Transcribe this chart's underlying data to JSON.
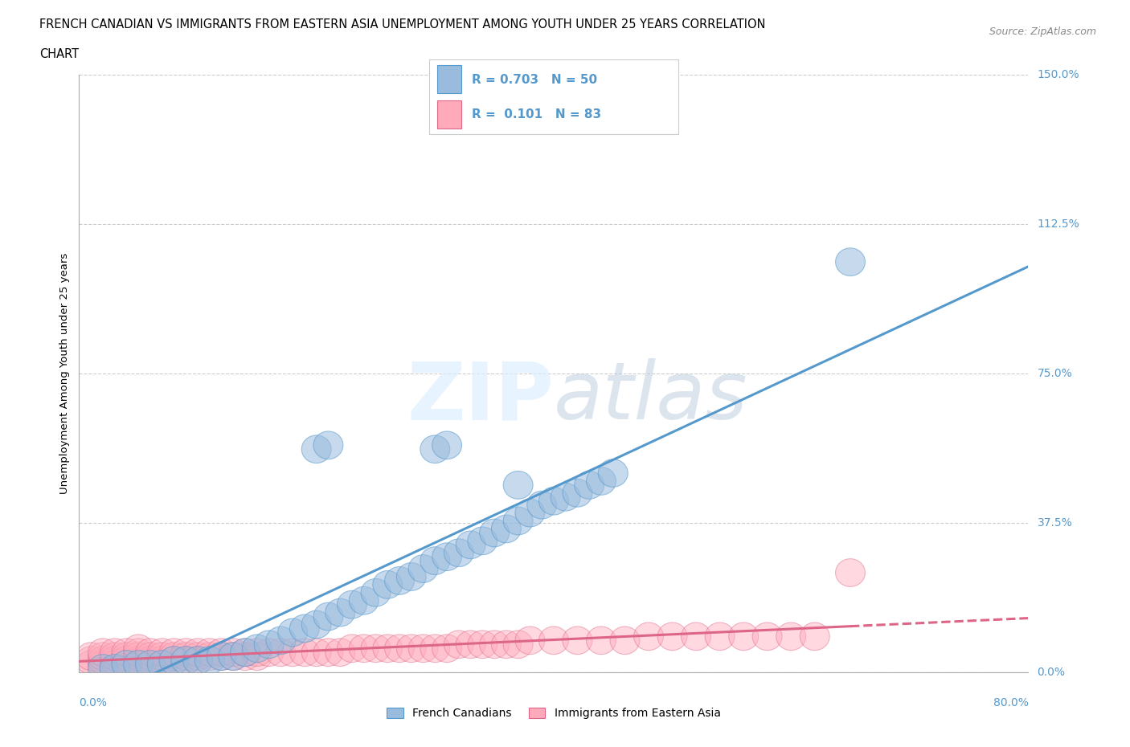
{
  "title_line1": "FRENCH CANADIAN VS IMMIGRANTS FROM EASTERN ASIA UNEMPLOYMENT AMONG YOUTH UNDER 25 YEARS CORRELATION",
  "title_line2": "CHART",
  "source_text": "Source: ZipAtlas.com",
  "xlabel_bottom_left": "0.0%",
  "xlabel_bottom_right": "80.0%",
  "ylabel": "Unemployment Among Youth under 25 years",
  "xlim": [
    0.0,
    80.0
  ],
  "ylim": [
    0.0,
    150.0
  ],
  "yticks": [
    0.0,
    37.5,
    75.0,
    112.5,
    150.0
  ],
  "ytick_labels": [
    "0.0%",
    "37.5%",
    "75.0%",
    "112.5%",
    "150.0%"
  ],
  "grid_color": "#cccccc",
  "background_color": "#ffffff",
  "blue_color": "#5599cc",
  "blue_fill": "#99bbdd",
  "pink_color": "#dd6688",
  "pink_fill": "#ffaabb",
  "blue_R": 0.703,
  "blue_N": 50,
  "pink_R": 0.101,
  "pink_N": 83,
  "legend_label_blue": "French Canadians",
  "legend_label_pink": "Immigrants from Eastern Asia",
  "blue_scatter_x": [
    2,
    3,
    4,
    5,
    6,
    7,
    8,
    9,
    10,
    11,
    12,
    13,
    14,
    15,
    16,
    17,
    18,
    19,
    20,
    21,
    22,
    23,
    24,
    25,
    26,
    27,
    28,
    29,
    30,
    31,
    32,
    33,
    34,
    35,
    36,
    37,
    38,
    39,
    40,
    41,
    42,
    43,
    44,
    45,
    65,
    20,
    21,
    30,
    31,
    37
  ],
  "blue_scatter_y": [
    1,
    1,
    2,
    2,
    2,
    2,
    3,
    3,
    3,
    3,
    4,
    4,
    5,
    6,
    7,
    8,
    10,
    11,
    12,
    14,
    15,
    17,
    18,
    20,
    22,
    23,
    24,
    26,
    28,
    29,
    30,
    32,
    33,
    35,
    36,
    38,
    40,
    42,
    43,
    44,
    45,
    47,
    48,
    50,
    103,
    56,
    57,
    56,
    57,
    47
  ],
  "pink_scatter_x": [
    1,
    1,
    1,
    2,
    2,
    2,
    2,
    3,
    3,
    3,
    3,
    4,
    4,
    4,
    4,
    5,
    5,
    5,
    5,
    5,
    6,
    6,
    6,
    6,
    7,
    7,
    7,
    7,
    8,
    8,
    8,
    9,
    9,
    9,
    10,
    10,
    10,
    11,
    11,
    12,
    12,
    13,
    13,
    14,
    14,
    15,
    15,
    16,
    17,
    18,
    19,
    20,
    21,
    22,
    23,
    24,
    25,
    26,
    27,
    28,
    29,
    30,
    31,
    32,
    33,
    34,
    35,
    36,
    37,
    38,
    40,
    42,
    44,
    46,
    48,
    50,
    52,
    54,
    56,
    58,
    60,
    62,
    65
  ],
  "pink_scatter_y": [
    2,
    3,
    4,
    2,
    3,
    4,
    5,
    2,
    3,
    4,
    5,
    2,
    3,
    4,
    5,
    2,
    3,
    4,
    5,
    6,
    2,
    3,
    4,
    5,
    2,
    3,
    4,
    5,
    3,
    4,
    5,
    3,
    4,
    5,
    3,
    4,
    5,
    4,
    5,
    4,
    5,
    4,
    5,
    4,
    5,
    4,
    5,
    5,
    5,
    5,
    5,
    5,
    5,
    5,
    6,
    6,
    6,
    6,
    6,
    6,
    6,
    6,
    6,
    7,
    7,
    7,
    7,
    7,
    7,
    8,
    8,
    8,
    8,
    8,
    9,
    9,
    9,
    9,
    9,
    9,
    9,
    9,
    25
  ]
}
